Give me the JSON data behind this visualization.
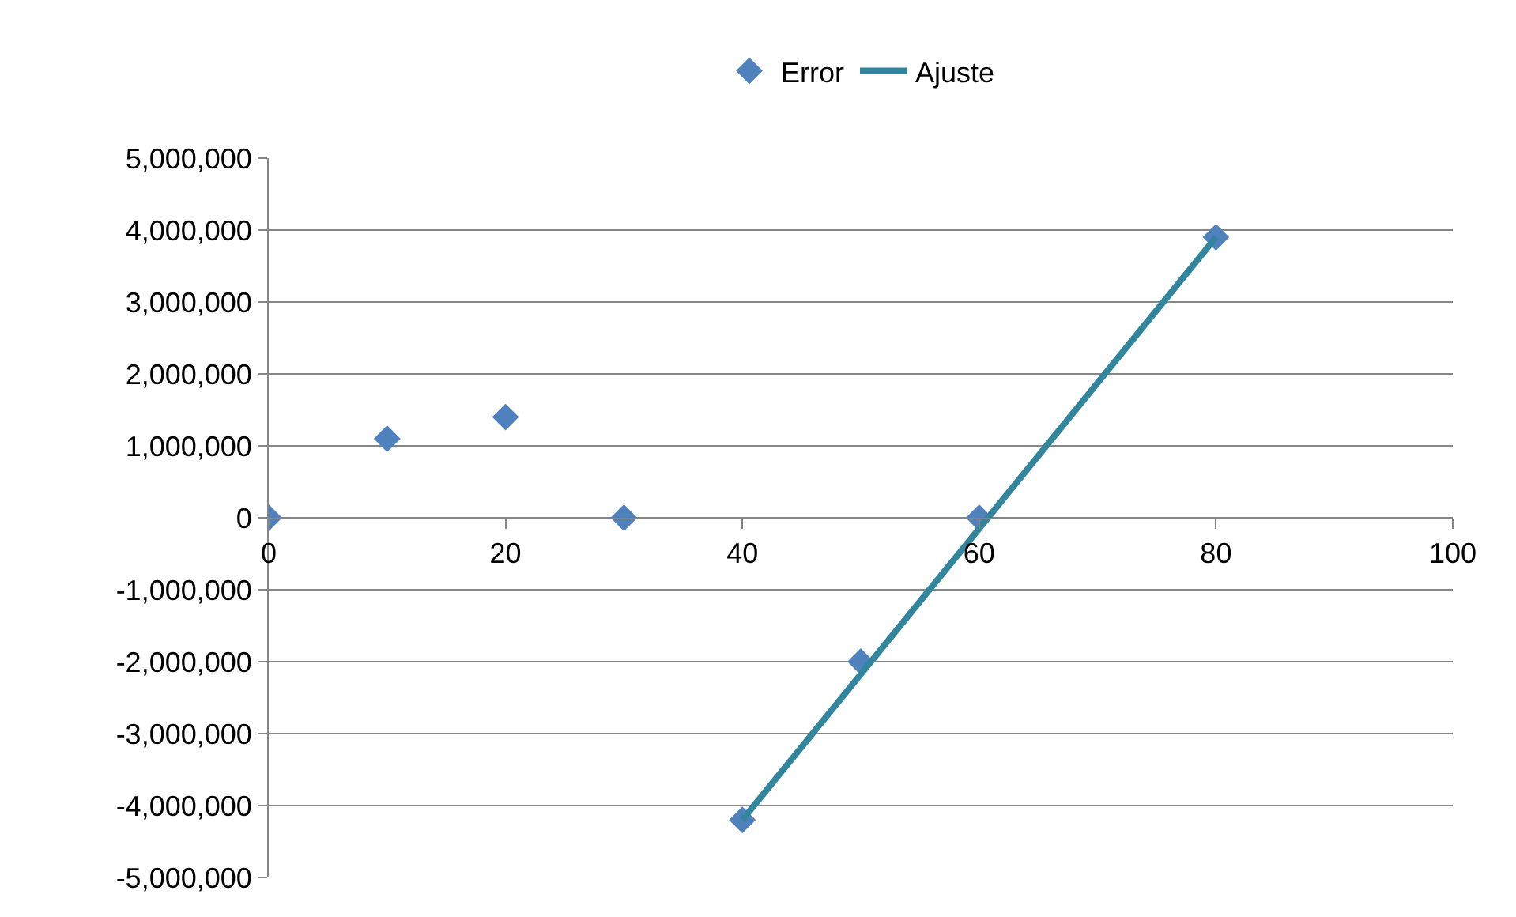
{
  "chart_data": {
    "type": "scatter",
    "legend": "top",
    "grid": "y",
    "xlim": [
      0,
      100
    ],
    "xticks": [
      0,
      20,
      40,
      60,
      80,
      100
    ],
    "ylim": [
      -5000000,
      5000000
    ],
    "yticks": [
      {
        "value": -5000000,
        "label": "-5,000,000"
      },
      {
        "value": -4000000,
        "label": "-4,000,000"
      },
      {
        "value": -3000000,
        "label": "-3,000,000"
      },
      {
        "value": -2000000,
        "label": "-2,000,000"
      },
      {
        "value": -1000000,
        "label": "-1,000,000"
      },
      0,
      {
        "value": 1000000,
        "label": "1,000,000"
      },
      {
        "value": 2000000,
        "label": "2,000,000"
      },
      {
        "value": 3000000,
        "label": "3,000,000"
      },
      {
        "value": 4000000,
        "label": "4,000,000"
      },
      {
        "value": 5000000,
        "label": "5,000,000"
      }
    ],
    "series": [
      {
        "name": "Error",
        "marker": "diamond",
        "color": "#4f81bd",
        "x": [
          0,
          10,
          20,
          30,
          40,
          50,
          60,
          80
        ],
        "values": [
          0,
          1100000,
          1400000,
          0,
          -4200000,
          -2000000,
          0,
          3900000
        ]
      },
      {
        "name": "Ajuste",
        "type": "line",
        "marker": "none",
        "color": "#31859c",
        "x": [
          40,
          80
        ],
        "values": [
          -4200000,
          3900000
        ]
      }
    ]
  }
}
